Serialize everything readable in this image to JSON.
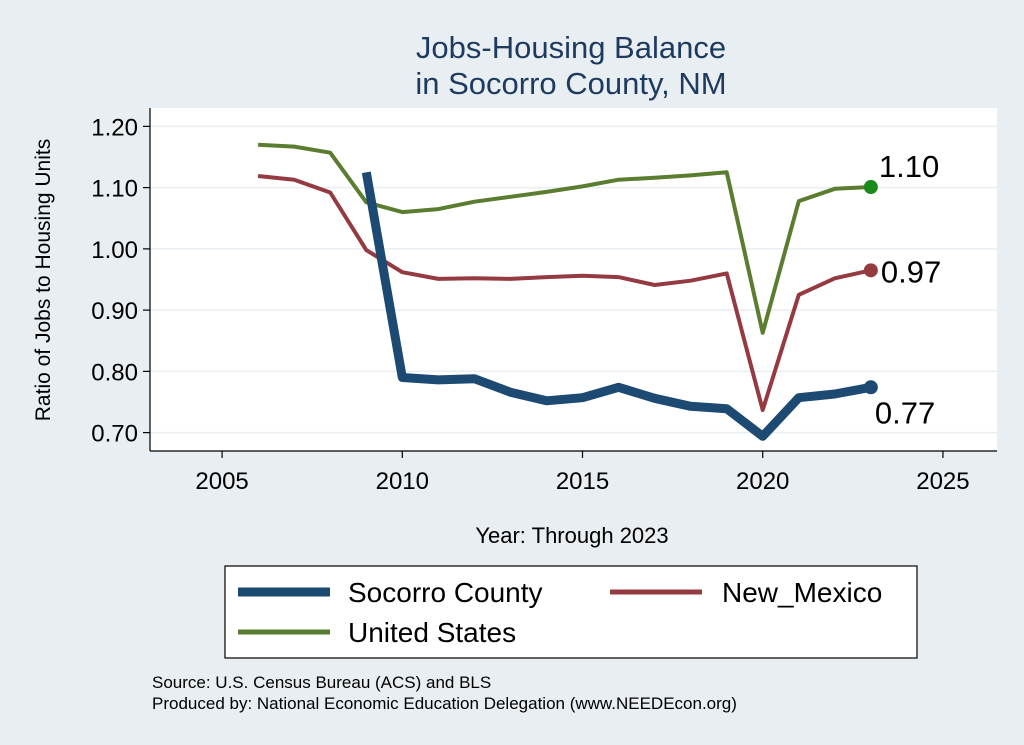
{
  "chart_data": {
    "type": "line",
    "title": [
      "Jobs-Housing Balance",
      "in Socorro County, NM"
    ],
    "xlabel": "Year: Through 2023",
    "ylabel": "Ratio of Jobs to Housing Units",
    "xlim": [
      2003,
      2026.5
    ],
    "ylim": [
      0.67,
      1.23
    ],
    "xticks": [
      2005,
      2010,
      2015,
      2020,
      2025
    ],
    "yticks": [
      0.7,
      0.8,
      0.9,
      1.0,
      1.1,
      1.2
    ],
    "ytick_labels": [
      "0.70",
      "0.80",
      "0.90",
      "1.00",
      "1.10",
      "1.20"
    ],
    "grid": true,
    "series": [
      {
        "name": "United States",
        "color": "#5a7d2f",
        "marker_color": "#1a8a1a",
        "width": 4,
        "end_label": "1.10",
        "x": [
          2006,
          2007,
          2008,
          2009,
          2010,
          2011,
          2012,
          2013,
          2014,
          2015,
          2016,
          2017,
          2018,
          2019,
          2020,
          2021,
          2022,
          2023
        ],
        "y": [
          1.17,
          1.167,
          1.157,
          1.076,
          1.06,
          1.065,
          1.077,
          1.085,
          1.093,
          1.102,
          1.113,
          1.116,
          1.12,
          1.125,
          0.863,
          1.078,
          1.098,
          1.101
        ]
      },
      {
        "name": "New_Mexico",
        "color": "#943a40",
        "marker_color": "#943a40",
        "width": 4,
        "end_label": "0.97",
        "x": [
          2006,
          2007,
          2008,
          2009,
          2010,
          2011,
          2012,
          2013,
          2014,
          2015,
          2016,
          2017,
          2018,
          2019,
          2020,
          2021,
          2022,
          2023
        ],
        "y": [
          1.119,
          1.113,
          1.092,
          0.998,
          0.962,
          0.951,
          0.952,
          0.951,
          0.954,
          0.956,
          0.954,
          0.941,
          0.948,
          0.96,
          0.737,
          0.925,
          0.952,
          0.965
        ]
      },
      {
        "name": "Socorro County",
        "color": "#1c4a72",
        "marker_color": "#1c4a72",
        "width": 9,
        "end_label": "0.77",
        "x": [
          2009,
          2010,
          2011,
          2012,
          2013,
          2014,
          2015,
          2016,
          2017,
          2018,
          2019,
          2020,
          2021,
          2022,
          2023
        ],
        "y": [
          1.125,
          0.79,
          0.786,
          0.788,
          0.766,
          0.752,
          0.757,
          0.774,
          0.756,
          0.743,
          0.739,
          0.694,
          0.757,
          0.763,
          0.774
        ]
      }
    ],
    "legend": [
      {
        "name": "Socorro County",
        "color": "#1c4a72",
        "width": 9
      },
      {
        "name": "New_Mexico",
        "color": "#943a40",
        "width": 5
      },
      {
        "name": "United States",
        "color": "#5a7d2f",
        "width": 5
      }
    ]
  },
  "footer": {
    "source": "Source: U.S. Census Bureau (ACS) and BLS",
    "produced_by": "Produced by: National Economic Education Delegation (www.NEEDEcon.org)"
  }
}
